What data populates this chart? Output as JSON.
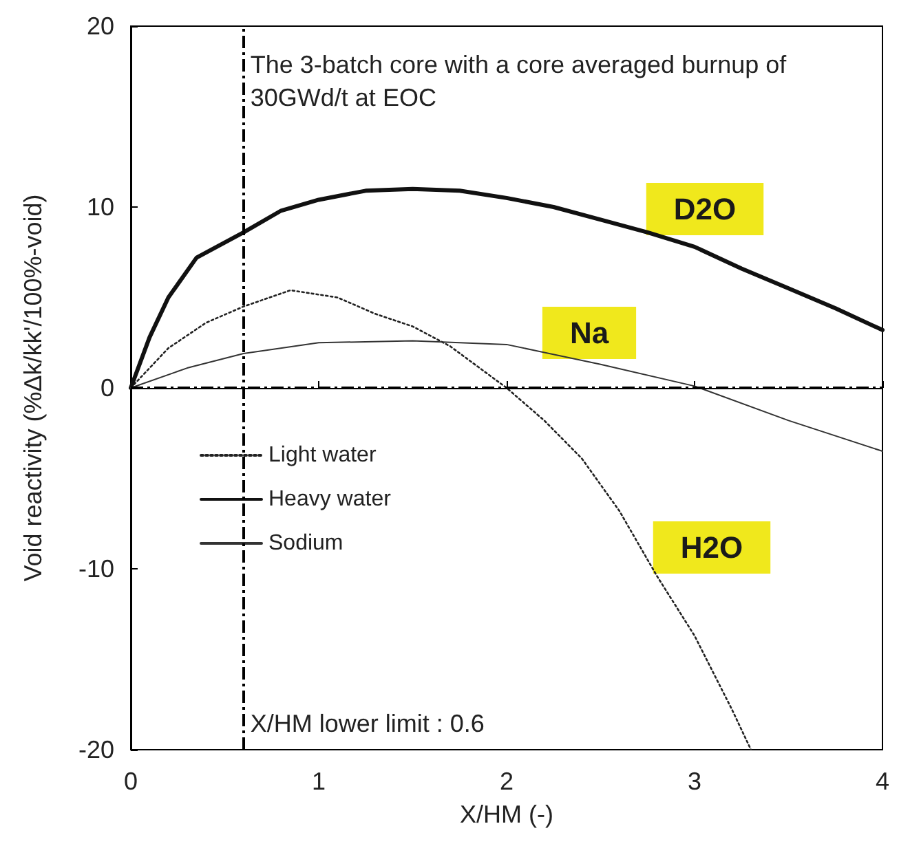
{
  "chart_data": {
    "type": "line",
    "xlabel": "X/HM (-)",
    "ylabel": "Void reactivity (%Δk/kk'/100%-void)",
    "xlim": [
      0,
      4
    ],
    "xticks": [
      0,
      1,
      2,
      3,
      4
    ],
    "ylim": [
      -20,
      20
    ],
    "yticks": [
      -20,
      -10,
      0,
      10,
      20
    ],
    "grid": false,
    "legend": "left",
    "marker": "none",
    "series": [
      {
        "name": "Light water",
        "color": "#222222",
        "line_style": "dotted",
        "x": [
          0,
          0.2,
          0.4,
          0.6,
          0.85,
          1.1,
          1.3,
          1.5,
          1.7,
          2,
          2.2,
          2.4,
          2.6,
          2.8,
          3,
          3.2,
          3.3
        ],
        "values": [
          0,
          2.2,
          3.6,
          4.5,
          5.4,
          5,
          4.1,
          3.4,
          2.3,
          0,
          -1.8,
          -3.9,
          -6.8,
          -10.4,
          -13.7,
          -17.8,
          -20
        ]
      },
      {
        "name": "Heavy water",
        "color": "#111111",
        "line_style": "solid",
        "x": [
          0,
          0.1,
          0.2,
          0.35,
          0.6,
          0.8,
          1,
          1.25,
          1.5,
          1.75,
          2,
          2.25,
          2.5,
          2.75,
          3,
          3.25,
          3.5,
          3.75,
          4
        ],
        "values": [
          0,
          2.8,
          5,
          7.2,
          8.6,
          9.8,
          10.4,
          10.9,
          11,
          10.9,
          10.5,
          10,
          9.3,
          8.6,
          7.8,
          6.6,
          5.5,
          4.4,
          3.2
        ]
      },
      {
        "name": "Sodium",
        "color": "#333333",
        "line_style": "solid",
        "x": [
          0,
          0.3,
          0.6,
          1,
          1.5,
          2,
          2.5,
          3,
          3.5,
          4
        ],
        "values": [
          0,
          1.1,
          1.9,
          2.5,
          2.6,
          2.4,
          1.3,
          0.1,
          -1.8,
          -3.5
        ]
      }
    ],
    "ref_lines": [
      {
        "axis": "x",
        "value": 0.6,
        "color": "#000000",
        "line_style": "dashed"
      },
      {
        "axis": "y",
        "value": 0,
        "color": "#000000",
        "line_style": "dashed"
      }
    ],
    "annotations": [
      "The 3-batch core with a core averaged burnup of 30GWd/t at EOC",
      "X/HM lower limit : 0.6",
      "D2O",
      "Na",
      "H2O"
    ]
  }
}
